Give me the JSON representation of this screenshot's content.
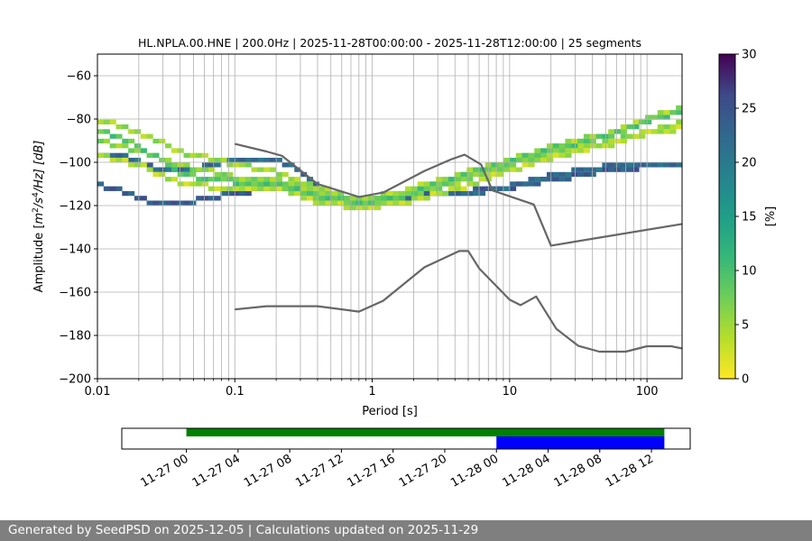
{
  "figure": {
    "title": "HL.NPLA.00.HNE | 200.0Hz | 2025-11-28T00:00:00 - 2025-11-28T12:00:00 | 25 segments",
    "footer": "Generated by SeedPSD on 2025-12-05 | Calculations updated on 2025-11-29"
  },
  "colors": {
    "noise_model": "#666666",
    "coverage_all": "#008000",
    "coverage_selected": "#0000ff",
    "grid": "#b0b0b0"
  },
  "chart_data": [
    {
      "type": "heatmap",
      "title": "HL.NPLA.00.HNE | 200.0Hz | 2025-11-28T00:00:00 - 2025-11-28T12:00:00 | 25 segments",
      "xlabel": "Period [s]",
      "ylabel_parts": {
        "prefix": "Amplitude [",
        "base1": "m",
        "sup1": "2",
        "mid": "/s",
        "sup2": "4",
        "suffix": "/Hz] [dB]"
      },
      "xscale": "log",
      "xlim": [
        0.01,
        180
      ],
      "ylim": [
        -200,
        -50
      ],
      "xticks": [
        0.01,
        0.1,
        1,
        10,
        100
      ],
      "xtick_labels": [
        "0.01",
        "0.1",
        "1",
        "10",
        "100"
      ],
      "yticks": [
        -60,
        -80,
        -100,
        -120,
        -140,
        -160,
        -180,
        -200
      ],
      "ytick_labels": [
        "−60",
        "−80",
        "−100",
        "−120",
        "−140",
        "−160",
        "−180",
        "−200"
      ],
      "grid": true,
      "colorbar": {
        "label": "[%]",
        "range": [
          0,
          30
        ],
        "ticks": [
          0,
          5,
          10,
          15,
          20,
          25,
          30
        ],
        "tick_labels": [
          "0",
          "5",
          "10",
          "15",
          "20",
          "25",
          "30"
        ],
        "colormap": "viridis_r"
      },
      "psd_modes": [
        {
          "name": "",
          "points": [
            [
              0.01,
              -110
            ],
            [
              0.015,
              -113
            ],
            [
              0.02,
              -117
            ],
            [
              0.03,
              -120
            ],
            [
              0.05,
              -118
            ],
            [
              0.1,
              -114
            ],
            [
              0.2,
              -112
            ],
            [
              0.3,
              -112
            ],
            [
              0.5,
              -119
            ],
            [
              0.8,
              -121
            ],
            [
              1.5,
              -119
            ],
            [
              3,
              -115
            ],
            [
              6,
              -113
            ],
            [
              10,
              -112
            ],
            [
              20,
              -108
            ],
            [
              50,
              -104
            ],
            [
              100,
              -102
            ],
            [
              180,
              -101
            ]
          ],
          "percent": 24
        },
        {
          "name": "",
          "points": [
            [
              0.01,
              -96
            ],
            [
              0.015,
              -97
            ],
            [
              0.03,
              -104
            ],
            [
              0.05,
              -103
            ],
            [
              0.1,
              -99
            ],
            [
              0.2,
              -99
            ],
            [
              0.3,
              -104
            ],
            [
              0.5,
              -114
            ],
            [
              0.8,
              -118
            ],
            [
              1.2,
              -117
            ],
            [
              2,
              -116
            ],
            [
              4,
              -114
            ],
            [
              8,
              -113
            ],
            [
              20,
              -106
            ],
            [
              50,
              -102
            ],
            [
              100,
              -101
            ],
            [
              180,
              -101
            ]
          ],
          "percent": 22
        },
        {
          "name": "",
          "points": [
            [
              0.01,
              -80
            ],
            [
              0.02,
              -86
            ],
            [
              0.04,
              -95
            ],
            [
              0.1,
              -101
            ],
            [
              0.2,
              -104
            ],
            [
              0.4,
              -112
            ],
            [
              0.8,
              -117
            ],
            [
              1.5,
              -114
            ],
            [
              3,
              -109
            ],
            [
              6,
              -103
            ],
            [
              10,
              -99
            ],
            [
              20,
              -93
            ],
            [
              50,
              -87
            ],
            [
              100,
              -80
            ],
            [
              180,
              -75
            ]
          ],
          "percent": 5
        },
        {
          "name": "",
          "points": [
            [
              0.01,
              -90
            ],
            [
              0.02,
              -95
            ],
            [
              0.04,
              -101
            ],
            [
              0.1,
              -107
            ],
            [
              0.2,
              -108
            ],
            [
              0.4,
              -114
            ],
            [
              0.8,
              -117
            ],
            [
              1.5,
              -116
            ],
            [
              3,
              -112
            ],
            [
              6,
              -106
            ],
            [
              10,
              -101
            ],
            [
              20,
              -96
            ],
            [
              50,
              -91
            ],
            [
              100,
              -86
            ],
            [
              180,
              -82
            ]
          ],
          "percent": 6
        },
        {
          "name": "",
          "points": [
            [
              0.01,
              -97
            ],
            [
              0.02,
              -101
            ],
            [
              0.04,
              -110
            ],
            [
              0.1,
              -112
            ],
            [
              0.2,
              -112
            ],
            [
              0.4,
              -118
            ],
            [
              0.8,
              -121
            ],
            [
              1.5,
              -119
            ],
            [
              3,
              -115
            ],
            [
              6,
              -109
            ],
            [
              10,
              -104
            ],
            [
              20,
              -98
            ],
            [
              50,
              -92
            ],
            [
              100,
              -87
            ],
            [
              180,
              -84
            ]
          ],
          "percent": 4
        },
        {
          "name": "",
          "points": [
            [
              0.01,
              -85
            ],
            [
              0.02,
              -92
            ],
            [
              0.04,
              -106
            ],
            [
              0.1,
              -109
            ],
            [
              0.2,
              -110
            ],
            [
              0.4,
              -116
            ],
            [
              0.8,
              -119
            ],
            [
              1.5,
              -117
            ],
            [
              3,
              -110
            ],
            [
              6,
              -104
            ],
            [
              10,
              -100
            ],
            [
              20,
              -94
            ],
            [
              50,
              -88
            ],
            [
              100,
              -81
            ],
            [
              180,
              -77
            ]
          ],
          "percent": 9
        }
      ],
      "noise_models": [
        {
          "name": "",
          "points": [
            [
              0.1,
              -91.5
            ],
            [
              0.17,
              -95
            ],
            [
              0.22,
              -97
            ],
            [
              0.4,
              -110
            ],
            [
              0.8,
              -116
            ],
            [
              1.2,
              -114
            ],
            [
              2.4,
              -104
            ],
            [
              3.8,
              -98.5
            ],
            [
              4.7,
              -96.5
            ],
            [
              6.2,
              -101
            ],
            [
              7.5,
              -113
            ],
            [
              15,
              -119.5
            ],
            [
              20,
              -138.5
            ],
            [
              180,
              -128.5
            ]
          ]
        },
        {
          "name": "",
          "points": [
            [
              0.1,
              -168
            ],
            [
              0.17,
              -166.5
            ],
            [
              0.4,
              -166.5
            ],
            [
              0.8,
              -169
            ],
            [
              1.2,
              -164
            ],
            [
              2.4,
              -148.5
            ],
            [
              4.3,
              -141
            ],
            [
              5.0,
              -141
            ],
            [
              6.0,
              -149
            ],
            [
              10,
              -163.5
            ],
            [
              12,
              -166
            ],
            [
              15.6,
              -162
            ],
            [
              21.9,
              -177
            ],
            [
              31.6,
              -184.8
            ],
            [
              45,
              -187.5
            ],
            [
              70,
              -187.5
            ],
            [
              100,
              -185
            ],
            [
              150,
              -185
            ],
            [
              180,
              -186
            ]
          ]
        }
      ]
    },
    {
      "type": "bar",
      "title": "",
      "xlabel": "",
      "ylabel": "",
      "xlim": [
        "2025-11-26 19:00",
        "2025-11-28 15:00"
      ],
      "xtick_labels": [
        "11-27 00",
        "11-27 04",
        "11-27 08",
        "11-27 12",
        "11-27 16",
        "11-27 20",
        "11-28 00",
        "11-28 04",
        "11-28 08",
        "11-28 12"
      ],
      "xticks": [
        "2025-11-27 00:00",
        "2025-11-27 04:00",
        "2025-11-27 08:00",
        "2025-11-27 12:00",
        "2025-11-27 16:00",
        "2025-11-27 20:00",
        "2025-11-28 00:00",
        "2025-11-28 04:00",
        "2025-11-28 08:00",
        "2025-11-28 12:00"
      ],
      "series": [
        {
          "name": "",
          "start": "2025-11-27 00:00",
          "end": "2025-11-28 13:00",
          "color": "#008000"
        },
        {
          "name": "",
          "start": "2025-11-28 00:00",
          "end": "2025-11-28 13:00",
          "color": "#0000ff"
        }
      ]
    }
  ]
}
